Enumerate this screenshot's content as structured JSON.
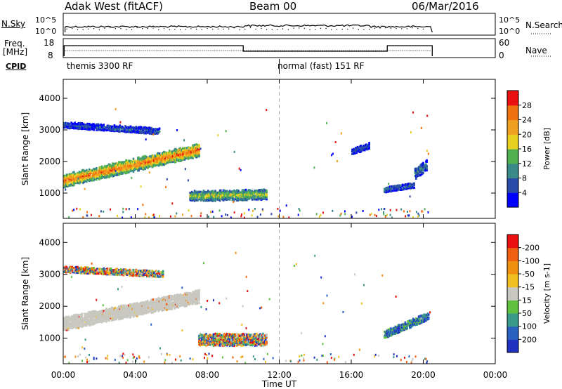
{
  "header": {
    "station": "Adak West (fitACF)",
    "beam": "Beam 00",
    "date": "06/Mar/2016"
  },
  "panel_labels": {
    "nsky": "N.Sky",
    "nsky_ticks": [
      "10^5",
      "10^0"
    ],
    "nsearch": "N.Search",
    "nsearch_ticks": [
      "10^5",
      "10^0"
    ],
    "freq_top": "Freq.",
    "freq_bottom": "[MHz]",
    "freq_ticks": [
      "18",
      "8"
    ],
    "nave": "Nave",
    "nave_ticks": [
      "60",
      "0"
    ],
    "cpid": "CPID"
  },
  "modes": [
    {
      "label": "themis 3300 RF",
      "start_hour": 0
    },
    {
      "label": "normal (fast) 151 RF",
      "start_hour": 12
    }
  ],
  "chart_data": [
    {
      "type": "heatmap",
      "name": "power-panel",
      "ylabel": "Slant Range [km]",
      "yticks": [
        1000,
        2000,
        3000,
        4000
      ],
      "ylim": [
        200,
        4600
      ],
      "xlim": [
        0,
        24
      ],
      "xticks": [
        "00:00",
        "04:00",
        "08:00",
        "12:00",
        "16:00",
        "20:00",
        "00:00"
      ],
      "colorbar": {
        "label": "Power [dB]",
        "ticks": [
          "4",
          "8",
          "12",
          "16",
          "20",
          "24",
          "28"
        ],
        "colors": [
          "#0000ff",
          "#2a4aaa",
          "#3a8a8a",
          "#50b050",
          "#e8d020",
          "#f0a020",
          "#f07010",
          "#e81010"
        ]
      },
      "regions": [
        {
          "t0": 0.0,
          "t1": 7.5,
          "r_start": 1380,
          "r_end": 2350,
          "thickness": 420,
          "level": 0.85
        },
        {
          "t0": 0.0,
          "t1": 5.3,
          "r_start": 3150,
          "r_end": 2950,
          "thickness": 200,
          "level": 0.22
        },
        {
          "t0": 7.0,
          "t1": 11.3,
          "r_start": 900,
          "r_end": 950,
          "thickness": 350,
          "level": 0.55
        },
        {
          "t0": 17.8,
          "t1": 19.5,
          "r_start": 1100,
          "r_end": 1250,
          "thickness": 180,
          "level": 0.25
        },
        {
          "t0": 19.5,
          "t1": 20.2,
          "r_start": 1600,
          "r_end": 1900,
          "thickness": 350,
          "level": 0.3
        },
        {
          "t0": 16.0,
          "t1": 17.0,
          "r_start": 2300,
          "r_end": 2500,
          "thickness": 200,
          "level": 0.2
        }
      ]
    },
    {
      "type": "heatmap",
      "name": "velocity-panel",
      "ylabel": "Slant Range [km]",
      "yticks": [
        1000,
        2000,
        3000,
        4000
      ],
      "ylim": [
        200,
        4600
      ],
      "xlim": [
        0,
        24
      ],
      "xlabel": "Time UT",
      "xticks": [
        "00:00",
        "04:00",
        "08:00",
        "12:00",
        "16:00",
        "20:00",
        "00:00"
      ],
      "colorbar": {
        "label": "Velocity [m s-1]",
        "ticks": [
          "200",
          "100",
          "50",
          "15",
          "-15",
          "-50",
          "-100",
          "-200"
        ],
        "colors": [
          "#2030c0",
          "#2a60c0",
          "#3a9a8a",
          "#60c040",
          "#c8c8c0",
          "#f0c020",
          "#f09010",
          "#f06010",
          "#e81010"
        ]
      },
      "regions": [
        {
          "t0": 0.0,
          "t1": 7.5,
          "r_start": 1450,
          "r_end": 2300,
          "thickness": 450,
          "level": "ground"
        },
        {
          "t0": 0.0,
          "t1": 5.5,
          "r_start": 3150,
          "r_end": 3000,
          "thickness": 200,
          "level": "mixed"
        },
        {
          "t0": 7.5,
          "t1": 11.3,
          "r_start": 950,
          "r_end": 950,
          "thickness": 400,
          "level": "mixed"
        },
        {
          "t0": 17.8,
          "t1": 20.3,
          "r_start": 1100,
          "r_end": 1700,
          "thickness": 250,
          "level": "positive"
        }
      ]
    }
  ]
}
